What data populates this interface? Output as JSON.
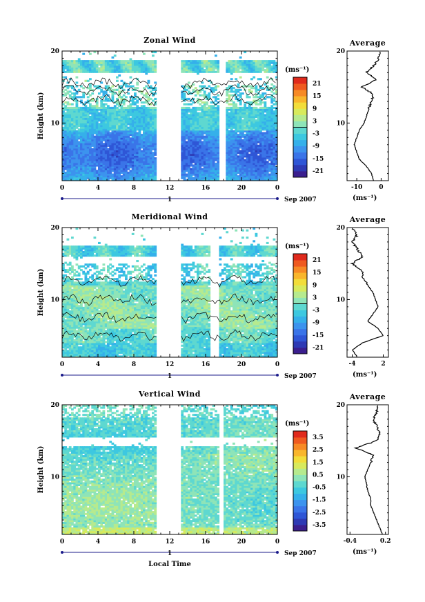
{
  "chart_data": [
    {
      "type": "heatmap",
      "title": "Zonal Wind",
      "ylabel": "Height (km)",
      "xticks": [
        "0",
        "4",
        "8",
        "12",
        "16",
        "20",
        "0"
      ],
      "yticks": [
        "10",
        "20"
      ],
      "ylim": [
        2,
        20
      ],
      "date_label": "1",
      "date_suffix": "Sep 2007",
      "colorbar": {
        "unit": "(ms⁻¹)",
        "ticks": [
          "21",
          "15",
          "9",
          "3",
          "-3",
          "-9",
          "-15",
          "-21"
        ],
        "range": [
          -24,
          24
        ]
      },
      "gaps_hours": [
        [
          10.5,
          13.3
        ],
        [
          17.6,
          18.2
        ]
      ],
      "profile": {
        "title": "Average",
        "xticks": [
          "-10",
          "0"
        ],
        "xlim": [
          -14,
          3
        ],
        "xlabel": "(ms⁻¹)",
        "height_km": [
          2,
          3,
          4,
          5,
          6,
          7,
          8,
          9,
          10,
          11,
          12,
          13,
          14,
          15,
          16,
          17,
          18,
          19,
          20
        ],
        "values": [
          -3,
          -4,
          -6,
          -9,
          -10,
          -11,
          -10,
          -9,
          -7,
          -6,
          -5,
          -4,
          -3,
          -8,
          -2,
          -6,
          -3,
          -1,
          0
        ]
      }
    },
    {
      "type": "heatmap",
      "title": "Meridional Wind",
      "ylabel": "Height (km)",
      "xticks": [
        "0",
        "4",
        "8",
        "12",
        "16",
        "20",
        "0"
      ],
      "yticks": [
        "10",
        "20"
      ],
      "ylim": [
        2,
        20
      ],
      "date_label": "1",
      "date_suffix": "Sep 2007",
      "colorbar": {
        "unit": "(ms⁻¹)",
        "ticks": [
          "21",
          "15",
          "9",
          "3",
          "-3",
          "-9",
          "-15",
          "-21"
        ],
        "range": [
          -24,
          24
        ]
      },
      "gaps_hours": [
        [
          10.5,
          13.3
        ],
        [
          16.5,
          17.4
        ]
      ],
      "profile": {
        "title": "Average",
        "xticks": [
          "-4",
          "2"
        ],
        "xlim": [
          -5,
          3
        ],
        "xlabel": "(ms⁻¹)",
        "height_km": [
          2,
          3,
          4,
          5,
          6,
          7,
          8,
          9,
          10,
          11,
          12,
          13,
          14,
          15,
          16,
          17,
          18,
          19,
          20
        ],
        "values": [
          -3,
          -4,
          -2,
          2,
          1,
          -1,
          0,
          1,
          0.5,
          0,
          -1,
          -2,
          -2,
          -4,
          -2,
          -3,
          -4,
          -3,
          -4
        ]
      }
    },
    {
      "type": "heatmap",
      "title": "Vertical Wind",
      "ylabel": "Height (km)",
      "xlabel": "Local Time",
      "xticks": [
        "0",
        "4",
        "8",
        "12",
        "16",
        "20",
        "0"
      ],
      "yticks": [
        "10",
        "20"
      ],
      "ylim": [
        2,
        20
      ],
      "date_label": "1",
      "date_suffix": "Sep 2007",
      "colorbar": {
        "unit": "(ms⁻¹)",
        "ticks": [
          "3.5",
          "2.5",
          "1.5",
          "0.5",
          "-0.5",
          "-1.5",
          "-2.5",
          "-3.5"
        ],
        "range": [
          -4,
          4
        ]
      },
      "gaps_hours": [
        [
          10.5,
          13.3
        ],
        [
          17.4,
          18.0
        ]
      ],
      "profile": {
        "title": "Average",
        "xticks": [
          "-0.4",
          "0.2"
        ],
        "xlim": [
          -0.45,
          0.25
        ],
        "xlabel": "(ms⁻¹)",
        "height_km": [
          2,
          3,
          4,
          5,
          6,
          7,
          8,
          9,
          10,
          11,
          12,
          13,
          14,
          15,
          16,
          17,
          18,
          19,
          20
        ],
        "values": [
          0.15,
          0.1,
          0.05,
          0,
          -0.05,
          -0.05,
          -0.1,
          -0.12,
          -0.15,
          -0.1,
          -0.05,
          0,
          -0.3,
          0.05,
          0.1,
          0.05,
          0,
          0.05,
          0.05
        ]
      }
    }
  ]
}
